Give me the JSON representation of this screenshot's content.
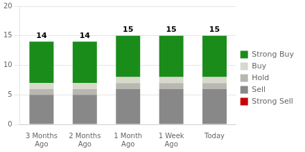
{
  "chart_data": {
    "type": "bar",
    "stacked": true,
    "categories": [
      "3 Months\nAgo",
      "2 Months\nAgo",
      "1 Month\nAgo",
      "1 Week\nAgo",
      "Today"
    ],
    "series": [
      {
        "name": "Strong Sell",
        "color": "#cc0000",
        "values": [
          0,
          0,
          0,
          0,
          0
        ]
      },
      {
        "name": "Sell",
        "color": "#888888",
        "values": [
          5,
          5,
          6,
          6,
          6
        ]
      },
      {
        "name": "Hold",
        "color": "#b8b8b0",
        "values": [
          1,
          1,
          1,
          1,
          1
        ]
      },
      {
        "name": "Buy",
        "color": "#d8d8cc",
        "values": [
          1,
          1,
          1,
          1,
          1
        ]
      },
      {
        "name": "Strong Buy",
        "color": "#1a8c1a",
        "values": [
          7,
          7,
          7,
          7,
          7
        ]
      }
    ],
    "totals": [
      14,
      14,
      15,
      15,
      15
    ],
    "ylim": [
      0,
      20
    ],
    "yticks": [
      0,
      5,
      10,
      15,
      20
    ],
    "grid": true,
    "legend": "right"
  }
}
